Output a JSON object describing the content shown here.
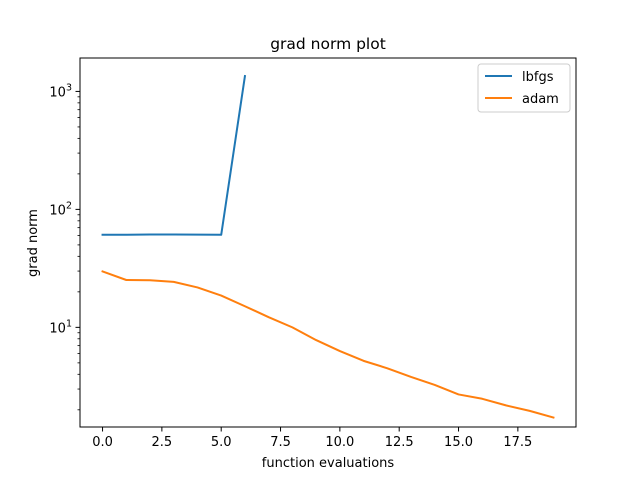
{
  "chart_data": {
    "type": "line",
    "title": "grad norm plot",
    "xlabel": "function evaluations",
    "ylabel": "grad norm",
    "yscale": "log",
    "xlim": [
      -0.95,
      19.95
    ],
    "ylim": [
      1.43,
      1920
    ],
    "grid": false,
    "legend_position": "top-right",
    "x_ticks": [
      0.0,
      2.5,
      5.0,
      7.5,
      10.0,
      12.5,
      15.0,
      17.5
    ],
    "x_tick_labels": [
      "0.0",
      "2.5",
      "5.0",
      "7.5",
      "10.0",
      "12.5",
      "15.0",
      "17.5"
    ],
    "y_ticks": [
      10,
      100,
      1000
    ],
    "y_tick_labels": [
      {
        "base": "10",
        "exp": "1"
      },
      {
        "base": "10",
        "exp": "2"
      },
      {
        "base": "10",
        "exp": "3"
      }
    ],
    "series": [
      {
        "name": "lbfgs",
        "color": "#1f77b4",
        "x": [
          0,
          1,
          2,
          3,
          4,
          5,
          6
        ],
        "y": [
          61,
          60.9,
          61.3,
          61.2,
          61.1,
          60.9,
          1350
        ]
      },
      {
        "name": "adam",
        "color": "#ff7f0e",
        "x": [
          0,
          1,
          2,
          3,
          4,
          5,
          6,
          7,
          8,
          9,
          10,
          11,
          12,
          13,
          14,
          15,
          16,
          17,
          18,
          19
        ],
        "y": [
          29.8,
          25.2,
          25.1,
          24.3,
          21.8,
          18.6,
          15.1,
          12.2,
          10.0,
          7.8,
          6.3,
          5.2,
          4.5,
          3.8,
          3.25,
          2.7,
          2.48,
          2.18,
          1.96,
          1.72
        ]
      }
    ]
  }
}
